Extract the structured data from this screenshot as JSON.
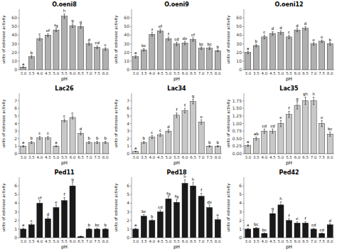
{
  "chart_data": [
    {
      "type": "bar",
      "title": "O.oeni8",
      "color": "#b0b0b0",
      "categories": [
        "3.0",
        "3.5",
        "4.0",
        "4.5",
        "5.0",
        "5.5",
        "6.0",
        "6.5",
        "7.0",
        "7.5",
        "8.0"
      ],
      "values": [
        3,
        15,
        36,
        40,
        46,
        62,
        51,
        50,
        30,
        26,
        24
      ],
      "errors": [
        0.5,
        1.5,
        2,
        1.5,
        2,
        2.5,
        2,
        2,
        1.5,
        1.5,
        1.5
      ],
      "annotations": [
        "a",
        "b",
        "c",
        "ef",
        "fg",
        "h",
        "g",
        "g",
        "d",
        "cd",
        "c"
      ],
      "ylim": [
        0,
        70
      ],
      "yticks": [
        0,
        10,
        20,
        30,
        40,
        50,
        60
      ],
      "xlabel": "pH",
      "ylabel": "units of esterase activity"
    },
    {
      "type": "bar",
      "title": "O.oeni9",
      "color": "#b0b0b0",
      "categories": [
        "3.0",
        "3.5",
        "4.0",
        "4.5",
        "5.0",
        "5.5",
        "6.0",
        "6.5",
        "7.0",
        "7.5",
        "8.0"
      ],
      "values": [
        15,
        23,
        41,
        45,
        36,
        30,
        31,
        35,
        25,
        25,
        22
      ],
      "errors": [
        1.5,
        1.5,
        2,
        2,
        2,
        2,
        2,
        2,
        1.5,
        1.5,
        1
      ],
      "annotations": [
        "a",
        "bc",
        "f",
        "ef",
        "f",
        "cd",
        "de",
        "cf",
        "bc",
        "bc",
        "b"
      ],
      "ylim": [
        0,
        70
      ],
      "yticks": [
        0,
        10,
        20,
        30,
        40,
        50,
        60
      ],
      "xlabel": "pH",
      "ylabel": "units of esterase activity"
    },
    {
      "type": "bar",
      "title": "O.oeni12",
      "color": "#b0b0b0",
      "categories": [
        "3.0",
        "3.5",
        "4.0",
        "4.5",
        "5.0",
        "5.5",
        "6.0",
        "6.5",
        "7.0",
        "7.5",
        "8.0"
      ],
      "values": [
        20,
        28,
        38,
        42,
        43,
        38,
        46,
        48,
        30,
        33,
        30
      ],
      "errors": [
        1.5,
        1.5,
        2,
        2,
        2,
        2,
        2,
        2,
        1.5,
        1.5,
        1.5
      ],
      "annotations": [
        "a",
        "b",
        "c",
        "d",
        "d",
        "c",
        "d",
        "d",
        "e",
        "e",
        "b"
      ],
      "ylim": [
        0,
        70
      ],
      "yticks": [
        0,
        10,
        20,
        30,
        40,
        50,
        60
      ],
      "xlabel": "pH",
      "ylabel": "units of esterase activity"
    },
    {
      "type": "bar",
      "title": "Lac26",
      "color": "#c8c8c8",
      "categories": [
        "3.0",
        "3.5",
        "4.0",
        "4.5",
        "5.0",
        "5.5",
        "6.0",
        "6.5",
        "7.0",
        "7.5",
        "8.0"
      ],
      "values": [
        1.0,
        1.5,
        2.1,
        2.1,
        1.0,
        4.4,
        4.8,
        2.7,
        1.5,
        1.5,
        1.5
      ],
      "errors": [
        0.1,
        0.15,
        0.2,
        0.2,
        0.1,
        0.2,
        0.2,
        0.2,
        0.15,
        0.15,
        0.15
      ],
      "annotations": [
        "a",
        "b",
        "c",
        "c",
        "a",
        "c",
        "c",
        "d",
        "b",
        "b",
        "b"
      ],
      "ylim": [
        0,
        8
      ],
      "yticks": [
        0,
        1,
        2,
        3,
        4,
        5,
        6,
        7
      ],
      "xlabel": "pH",
      "ylabel": "units of esterase activity"
    },
    {
      "type": "bar",
      "title": "Lac34",
      "color": "#c8c8c8",
      "categories": [
        "3.0",
        "3.5",
        "4.0",
        "4.5",
        "5.0",
        "5.5",
        "6.0",
        "6.5",
        "7.0",
        "7.5",
        "8.0"
      ],
      "values": [
        0.3,
        1.5,
        2.2,
        2.5,
        3.0,
        5.1,
        5.7,
        6.9,
        4.2,
        1.0,
        1.0
      ],
      "errors": [
        0.05,
        0.15,
        0.2,
        0.2,
        0.2,
        0.3,
        0.3,
        0.3,
        0.3,
        0.1,
        0.1
      ],
      "annotations": [
        "a",
        "b",
        "c",
        "c",
        "d",
        "f",
        "f",
        "g",
        "e",
        "b",
        "b"
      ],
      "ylim": [
        0,
        8
      ],
      "yticks": [
        0,
        1,
        2,
        3,
        4,
        5,
        6,
        7
      ],
      "xlabel": "pH",
      "ylabel": "units of esterase activity"
    },
    {
      "type": "bar",
      "title": "Lac35",
      "color": "#c8c8c8",
      "categories": [
        "3.0",
        "3.5",
        "4.0",
        "4.5",
        "5.0",
        "5.5",
        "6.0",
        "6.5",
        "7.0",
        "7.5",
        "8.0"
      ],
      "values": [
        0.27,
        0.5,
        0.75,
        0.75,
        1.0,
        1.3,
        1.6,
        1.75,
        1.75,
        1.0,
        0.65
      ],
      "errors": [
        0.03,
        0.05,
        0.07,
        0.07,
        0.1,
        0.1,
        0.12,
        0.12,
        0.12,
        0.1,
        0.07
      ],
      "annotations": [
        "a",
        "ab",
        "cd",
        "cd",
        "e",
        "f",
        "g",
        "gh",
        "h",
        "e",
        "bc"
      ],
      "ylim": [
        0,
        2
      ],
      "yticks": [
        {
          "value": 0,
          "label": "0.00"
        },
        0.25,
        {
          "value": 0.5,
          "label": "0.50"
        },
        0.75,
        {
          "value": 1.0,
          "label": "1.00"
        },
        1.25,
        {
          "value": 1.5,
          "label": "1.50"
        },
        1.75
      ],
      "xlabel": "pH",
      "ylabel": "units of esterase activity"
    },
    {
      "type": "bar",
      "title": "Ped11",
      "color": "#1a1a1a",
      "categories": [
        "3.0",
        "3.5",
        "4.0",
        "4.5",
        "5.0",
        "5.5",
        "6.0",
        "6.5",
        "7.0",
        "7.5",
        "8.0"
      ],
      "values": [
        1.0,
        1.5,
        4.0,
        2.2,
        3.5,
        4.3,
        6.0,
        0.15,
        1.0,
        1.0,
        1.0
      ],
      "errors": [
        0.1,
        0.15,
        0.3,
        0.2,
        0.3,
        0.35,
        0.4,
        0.05,
        0.1,
        0.1,
        0.1
      ],
      "annotations": [
        "a",
        "c",
        "cf",
        "d",
        "e",
        "f",
        "g",
        null,
        "b",
        "bc",
        "b"
      ],
      "ylim": [
        0,
        7
      ],
      "yticks": [
        0,
        1,
        2,
        3,
        4,
        5,
        6
      ],
      "xlabel": "pH",
      "ylabel": "units of esterase activity"
    },
    {
      "type": "bar",
      "title": "Ped18",
      "color": "#1a1a1a",
      "categories": [
        "3.0",
        "3.5",
        "4.0",
        "4.5",
        "5.0",
        "5.5",
        "6.0",
        "6.5",
        "7.0",
        "7.5",
        "8.0"
      ],
      "values": [
        1.0,
        2.5,
        2.0,
        3.0,
        4.5,
        4.1,
        6.3,
        6.0,
        4.8,
        3.5,
        2.1
      ],
      "errors": [
        0.1,
        0.2,
        0.15,
        0.2,
        0.3,
        0.3,
        0.4,
        0.4,
        0.35,
        0.3,
        0.2
      ],
      "annotations": [
        "a",
        "bc",
        "b",
        "cd",
        "fg",
        "fg",
        "h",
        "h",
        "f",
        "de",
        "e"
      ],
      "ylim": [
        0,
        7
      ],
      "yticks": [
        0,
        1,
        2,
        3,
        4,
        5,
        6
      ],
      "xlabel": "pH",
      "ylabel": "units of esterase activity"
    },
    {
      "type": "bar",
      "title": "Ped42",
      "color": "#1a1a1a",
      "categories": [
        "3.0",
        "3.5",
        "4.0",
        "4.5",
        "5.0",
        "5.5",
        "6.0",
        "6.5",
        "7.0",
        "7.5",
        "8.0"
      ],
      "values": [
        1.0,
        1.1,
        0.5,
        2.8,
        3.8,
        2.0,
        1.7,
        1.7,
        1.0,
        0.5,
        1.5
      ],
      "errors": [
        0.1,
        0.1,
        0.05,
        0.25,
        0.35,
        0.2,
        0.15,
        0.15,
        0.1,
        0.05,
        0.15
      ],
      "annotations": [
        "a",
        "bc",
        "bc",
        "g",
        "h",
        "f",
        "e",
        "f",
        "cd",
        "cd",
        "d"
      ],
      "ylim": [
        0,
        7
      ],
      "yticks": [
        0,
        1,
        2,
        3,
        4,
        5,
        6
      ],
      "xlabel": "pH",
      "ylabel": "units of esterase activity"
    }
  ]
}
